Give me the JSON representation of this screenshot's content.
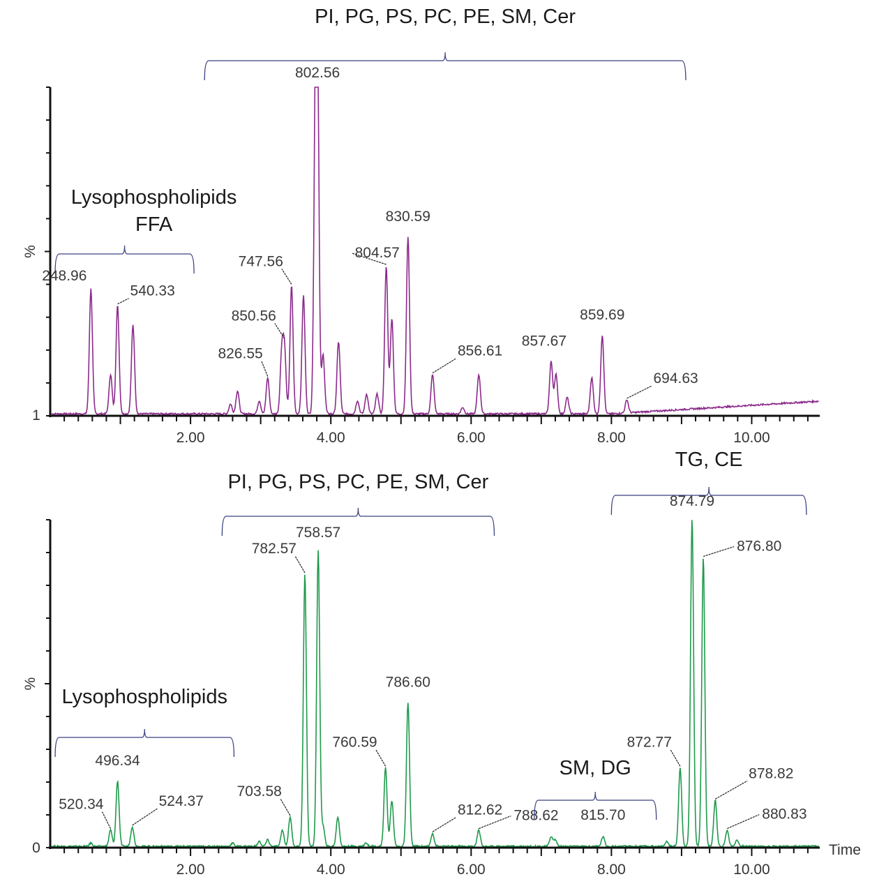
{
  "chart_data": [
    {
      "type": "line",
      "color": "#8b2a8b",
      "ylabel": "%",
      "y_min_label": "1",
      "xlim": [
        0,
        11
      ],
      "ylim": [
        0,
        100
      ],
      "x_ticks": [
        "2.00",
        "4.00",
        "6.00",
        "8.00",
        "10.00"
      ],
      "peaks": [
        [
          0.58,
          38
        ],
        [
          0.86,
          12
        ],
        [
          0.96,
          33
        ],
        [
          1.18,
          27
        ],
        [
          2.57,
          3
        ],
        [
          2.67,
          7
        ],
        [
          2.98,
          4
        ],
        [
          3.1,
          11
        ],
        [
          3.3,
          18
        ],
        [
          3.34,
          19
        ],
        [
          3.44,
          39
        ],
        [
          3.61,
          36
        ],
        [
          3.78,
          85
        ],
        [
          3.81,
          100
        ],
        [
          3.89,
          18
        ],
        [
          4.11,
          22
        ],
        [
          4.38,
          4
        ],
        [
          4.51,
          6
        ],
        [
          4.66,
          6
        ],
        [
          4.79,
          45
        ],
        [
          4.87,
          29
        ],
        [
          5.1,
          54
        ],
        [
          5.45,
          12
        ],
        [
          5.88,
          2
        ],
        [
          6.11,
          12
        ],
        [
          7.14,
          16
        ],
        [
          7.21,
          12
        ],
        [
          7.37,
          5
        ],
        [
          7.72,
          11
        ],
        [
          7.87,
          24
        ],
        [
          8.22,
          4
        ]
      ],
      "annotations": [
        {
          "text": "248.96",
          "rt": 0.58
        },
        {
          "text": "540.33",
          "rt": 0.96
        },
        {
          "text": "826.55",
          "rt": 3.1
        },
        {
          "text": "850.56",
          "rt": 3.34
        },
        {
          "text": "747.56",
          "rt": 3.44
        },
        {
          "text": "802.56",
          "rt": 3.81
        },
        {
          "text": "804.57",
          "rt": 4.79
        },
        {
          "text": "830.59",
          "rt": 5.1
        },
        {
          "text": "856.61",
          "rt": 5.45
        },
        {
          "text": "857.67",
          "rt": 7.14
        },
        {
          "text": "859.69",
          "rt": 7.87
        },
        {
          "text": "694.63",
          "rt": 8.22
        }
      ],
      "groups": [
        {
          "text": "PI, PG, PS, PC, PE, SM, Cer",
          "from": 2.2,
          "to": 9.06
        },
        {
          "text": "Lysophospholipids",
          "text2": "FFA",
          "from": 0.07,
          "to": 2.05
        }
      ]
    },
    {
      "type": "line",
      "color": "#1f9a4c",
      "ylabel": "%",
      "y_min_label": "0",
      "xlabel": "Time",
      "xlim": [
        0,
        11
      ],
      "ylim": [
        0,
        100
      ],
      "x_ticks": [
        "2.00",
        "4.00",
        "6.00",
        "8.00",
        "10.00"
      ],
      "peaks": [
        [
          0.58,
          1
        ],
        [
          0.86,
          5
        ],
        [
          0.96,
          20
        ],
        [
          1.17,
          6
        ],
        [
          2.6,
          1
        ],
        [
          2.98,
          1.5
        ],
        [
          3.1,
          2
        ],
        [
          3.31,
          5
        ],
        [
          3.42,
          9
        ],
        [
          3.63,
          83
        ],
        [
          3.82,
          90
        ],
        [
          3.89,
          6
        ],
        [
          4.1,
          9
        ],
        [
          4.5,
          1
        ],
        [
          4.78,
          24
        ],
        [
          4.87,
          14
        ],
        [
          5.1,
          44
        ],
        [
          5.45,
          4
        ],
        [
          6.11,
          5
        ],
        [
          7.14,
          3
        ],
        [
          7.2,
          2
        ],
        [
          7.88,
          3
        ],
        [
          8.79,
          1.5
        ],
        [
          8.98,
          24
        ],
        [
          9.15,
          100
        ],
        [
          9.31,
          88
        ],
        [
          9.48,
          14
        ],
        [
          9.65,
          5
        ],
        [
          9.79,
          2
        ]
      ],
      "annotations": [
        {
          "text": "520.34",
          "rt": 0.86
        },
        {
          "text": "496.34",
          "rt": 0.96
        },
        {
          "text": "524.37",
          "rt": 1.17
        },
        {
          "text": "703.58",
          "rt": 3.42
        },
        {
          "text": "782.57",
          "rt": 3.63
        },
        {
          "text": "758.57",
          "rt": 3.82
        },
        {
          "text": "760.59",
          "rt": 4.78
        },
        {
          "text": "786.60",
          "rt": 5.1
        },
        {
          "text": "812.62",
          "rt": 5.45
        },
        {
          "text": "788.62",
          "rt": 6.11
        },
        {
          "text": "815.70",
          "rt": 7.88
        },
        {
          "text": "872.77",
          "rt": 8.98
        },
        {
          "text": "874.79",
          "rt": 9.15
        },
        {
          "text": "876.80",
          "rt": 9.31
        },
        {
          "text": "878.82",
          "rt": 9.48
        },
        {
          "text": "880.83",
          "rt": 9.65
        }
      ],
      "groups": [
        {
          "text": "PI, PG, PS, PC, PE, SM, Cer",
          "from": 2.45,
          "to": 6.33
        },
        {
          "text": "TG, CE",
          "from": 8.0,
          "to": 10.78
        },
        {
          "text": "Lysophospholipids",
          "from": 0.07,
          "to": 2.62
        },
        {
          "text": "SM, DG",
          "from": 6.9,
          "to": 8.64
        }
      ]
    }
  ],
  "colors": {
    "bracket": "#3b4080",
    "axis": "#111111",
    "label": "#3a3a3a"
  }
}
